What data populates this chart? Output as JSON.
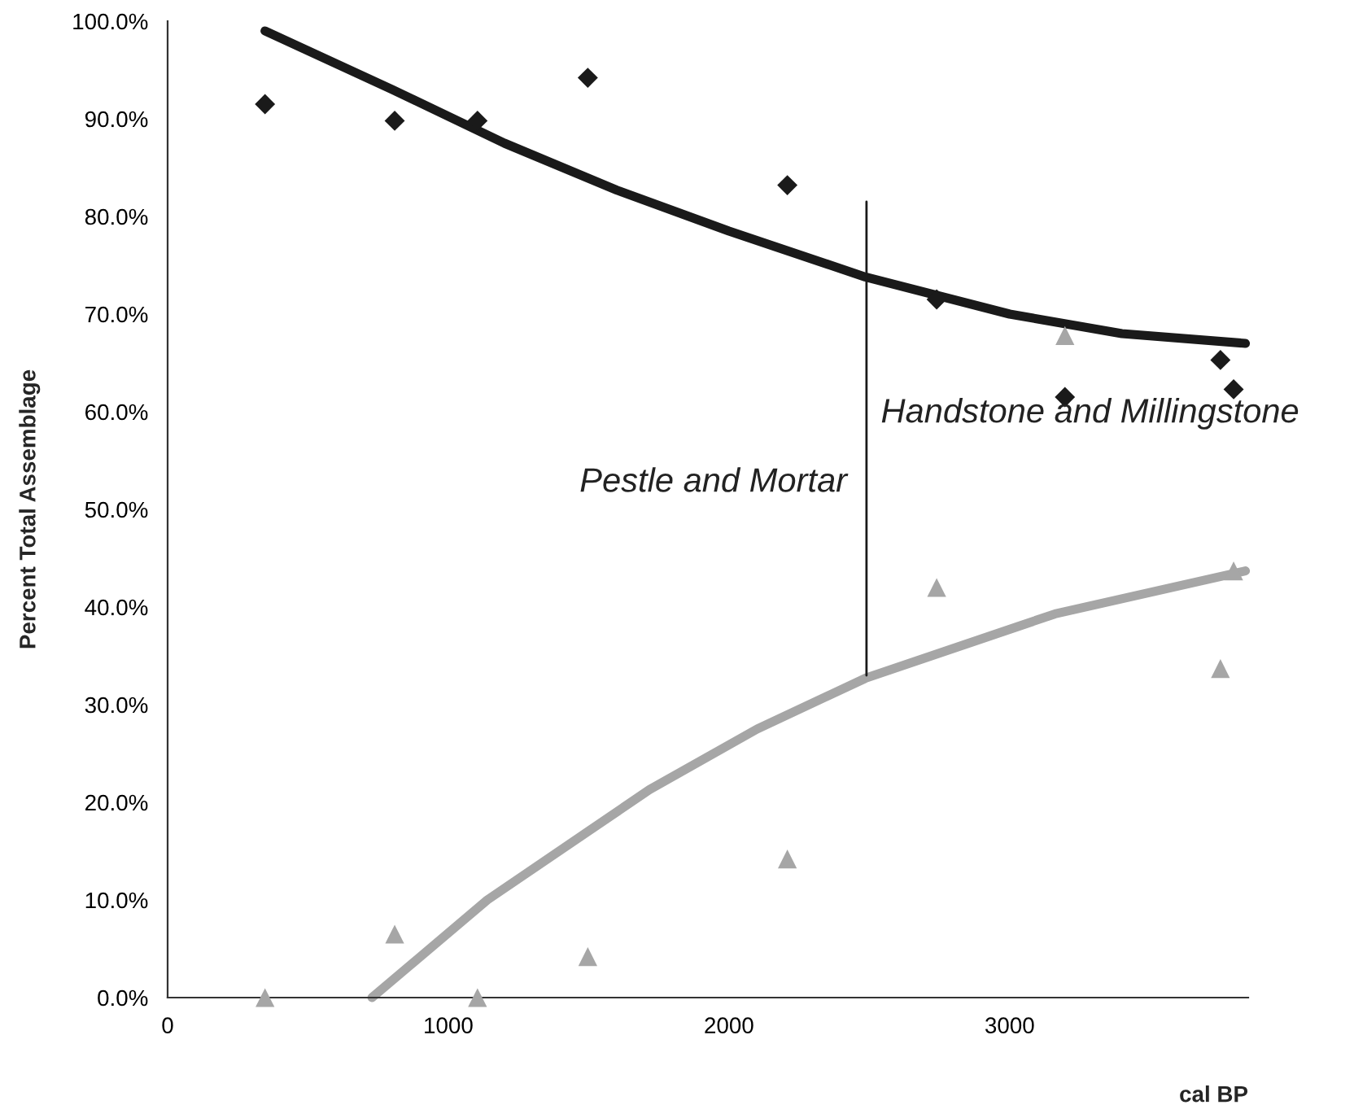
{
  "chart_data": {
    "type": "scatter",
    "xlabel": "cal BP",
    "ylabel": "Percent Total Assemblage",
    "xlim": [
      0,
      3850
    ],
    "xticks": [
      0,
      1000,
      2000,
      3000
    ],
    "ylim": [
      0,
      100
    ],
    "yticks": [
      {
        "value": 0,
        "label": "0.0%"
      },
      {
        "value": 10,
        "label": "10.0%"
      },
      {
        "value": 20,
        "label": "20.0%"
      },
      {
        "value": 30,
        "label": "30.0%"
      },
      {
        "value": 40,
        "label": "40.0%"
      },
      {
        "value": 50,
        "label": "50.0%"
      },
      {
        "value": 60,
        "label": "60.0%"
      },
      {
        "value": 70,
        "label": "70.0%"
      },
      {
        "value": 80,
        "label": "80.0%"
      },
      {
        "value": 90,
        "label": "90.0%"
      },
      {
        "value": 100,
        "label": "100.0%"
      }
    ],
    "grid": false,
    "legend": false,
    "annotations": [
      "Pestle and Mortar",
      "Handstone and Millingstone"
    ],
    "series": [
      {
        "type": "line",
        "color": "#1a1a1a",
        "marker": "none",
        "x": [
          347,
          800,
          1200,
          1600,
          2000,
          2486,
          3000,
          3400,
          3840
        ],
        "values": [
          99,
          93,
          87.5,
          82.7,
          78.5,
          73.8,
          70,
          68,
          67
        ]
      },
      {
        "type": "line",
        "color": "#a6a6a6",
        "marker": "none",
        "x": [
          728,
          1139,
          1717,
          2100,
          2486,
          3162,
          3840
        ],
        "values": [
          0,
          10,
          21.3,
          27.5,
          32.7,
          39.3,
          43.7
        ]
      },
      {
        "color": "#1a1a1a",
        "marker": "diamond",
        "x": [
          347,
          809,
          1104,
          1497,
          2208,
          2740,
          3197,
          3751,
          3798
        ],
        "values": [
          91.5,
          89.8,
          89.8,
          94.2,
          83.2,
          71.5,
          61.5,
          65.3,
          62.3
        ]
      },
      {
        "color": "#a6a6a6",
        "marker": "triangle",
        "x": [
          347,
          809,
          1104,
          1497,
          2208,
          2740,
          3197,
          3751,
          3798
        ],
        "values": [
          0,
          6.5,
          0,
          4.2,
          14.2,
          42,
          67.8,
          33.7,
          43.7
        ]
      },
      {
        "type": "line",
        "color": "#1a1a1a",
        "marker": "none",
        "x": [
          2490,
          2490
        ],
        "values": [
          33,
          81.5
        ]
      }
    ]
  }
}
